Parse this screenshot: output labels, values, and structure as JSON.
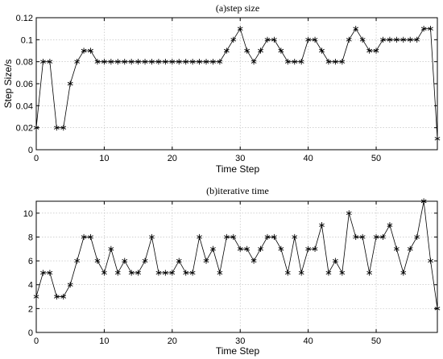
{
  "chart_data": [
    {
      "type": "line",
      "title": "(a)step size",
      "xlabel": "Time Step",
      "ylabel": "Step Size/s",
      "xlim": [
        0,
        59
      ],
      "ylim": [
        0,
        0.12
      ],
      "xticks": [
        0,
        10,
        20,
        30,
        40,
        50
      ],
      "yticks": [
        0,
        0.02,
        0.04,
        0.06,
        0.08,
        0.1,
        0.12
      ],
      "ytick_labels": [
        "0",
        "0.02",
        "0.04",
        "0.06",
        "0.08",
        "0.1",
        "0.12"
      ],
      "grid": true,
      "marker": "asterisk",
      "x": [
        0,
        1,
        2,
        3,
        4,
        5,
        6,
        7,
        8,
        9,
        10,
        11,
        12,
        13,
        14,
        15,
        16,
        17,
        18,
        19,
        20,
        21,
        22,
        23,
        24,
        25,
        26,
        27,
        28,
        29,
        30,
        31,
        32,
        33,
        34,
        35,
        36,
        37,
        38,
        39,
        40,
        41,
        42,
        43,
        44,
        45,
        46,
        47,
        48,
        49,
        50,
        51,
        52,
        53,
        54,
        55,
        56,
        57,
        58,
        59
      ],
      "series": [
        {
          "values": [
            0.02,
            0.08,
            0.08,
            0.02,
            0.02,
            0.06,
            0.08,
            0.09,
            0.09,
            0.08,
            0.08,
            0.08,
            0.08,
            0.08,
            0.08,
            0.08,
            0.08,
            0.08,
            0.08,
            0.08,
            0.08,
            0.08,
            0.08,
            0.08,
            0.08,
            0.08,
            0.08,
            0.08,
            0.09,
            0.1,
            0.11,
            0.09,
            0.08,
            0.09,
            0.1,
            0.1,
            0.09,
            0.08,
            0.08,
            0.08,
            0.1,
            0.1,
            0.09,
            0.08,
            0.08,
            0.08,
            0.1,
            0.11,
            0.1,
            0.09,
            0.09,
            0.1,
            0.1,
            0.1,
            0.1,
            0.1,
            0.1,
            0.11,
            0.11,
            0.01
          ]
        }
      ]
    },
    {
      "type": "line",
      "title": "(b)iterative time",
      "xlabel": "Time Step",
      "ylabel": "",
      "xlim": [
        0,
        59
      ],
      "ylim": [
        0,
        11
      ],
      "xticks": [
        0,
        10,
        20,
        30,
        40,
        50
      ],
      "yticks": [
        0,
        2,
        4,
        6,
        8,
        10
      ],
      "ytick_labels": [
        "0",
        "2",
        "4",
        "6",
        "8",
        "10"
      ],
      "grid": true,
      "marker": "asterisk",
      "x": [
        0,
        1,
        2,
        3,
        4,
        5,
        6,
        7,
        8,
        9,
        10,
        11,
        12,
        13,
        14,
        15,
        16,
        17,
        18,
        19,
        20,
        21,
        22,
        23,
        24,
        25,
        26,
        27,
        28,
        29,
        30,
        31,
        32,
        33,
        34,
        35,
        36,
        37,
        38,
        39,
        40,
        41,
        42,
        43,
        44,
        45,
        46,
        47,
        48,
        49,
        50,
        51,
        52,
        53,
        54,
        55,
        56,
        57,
        58,
        59
      ],
      "series": [
        {
          "values": [
            3,
            5,
            5,
            3,
            3,
            4,
            6,
            8,
            8,
            6,
            5,
            7,
            5,
            6,
            5,
            5,
            6,
            8,
            5,
            5,
            5,
            6,
            5,
            5,
            8,
            6,
            7,
            5,
            8,
            8,
            7,
            7,
            6,
            7,
            8,
            8,
            7,
            5,
            8,
            5,
            7,
            7,
            9,
            5,
            6,
            5,
            10,
            8,
            8,
            5,
            8,
            8,
            9,
            7,
            5,
            7,
            8,
            11,
            6,
            2
          ]
        }
      ]
    }
  ]
}
